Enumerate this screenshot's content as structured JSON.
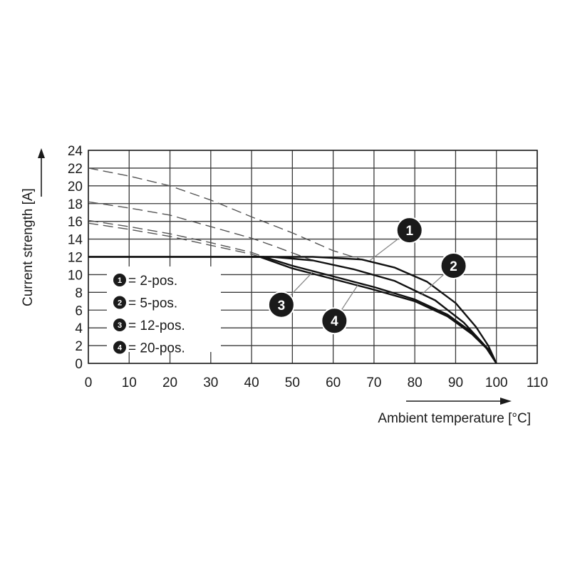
{
  "chart_data": {
    "type": "line",
    "xlabel": "Ambient temperature [°C]",
    "ylabel": "Current strength [A]",
    "xlim": [
      0,
      110
    ],
    "ylim": [
      0,
      24
    ],
    "xticks": [
      "0",
      "10",
      "20",
      "30",
      "40",
      "50",
      "60",
      "70",
      "80",
      "90",
      "100",
      "110"
    ],
    "yticks": [
      "0",
      "2",
      "4",
      "6",
      "8",
      "10",
      "12",
      "14",
      "16",
      "18",
      "20",
      "22",
      "24"
    ],
    "grid": true,
    "legend_position": "lower-left",
    "plateau": {
      "y": 12,
      "x": [
        0,
        40
      ]
    },
    "series": [
      {
        "name": "2-pos.",
        "marker_label": "1",
        "solid": [
          [
            40,
            12
          ],
          [
            55,
            12
          ],
          [
            67,
            11.7
          ],
          [
            75,
            10.8
          ],
          [
            83,
            9.2
          ],
          [
            90,
            6.8
          ],
          [
            95,
            4.1
          ],
          [
            98,
            2.0
          ],
          [
            100,
            0
          ]
        ],
        "dashed": [
          [
            0,
            22
          ],
          [
            10,
            21.1
          ],
          [
            20,
            20
          ],
          [
            30,
            18.4
          ],
          [
            40,
            16.5
          ],
          [
            50,
            14.7
          ],
          [
            60,
            12.7
          ],
          [
            67,
            11.7
          ]
        ]
      },
      {
        "name": "5-pos.",
        "marker_label": "2",
        "solid": [
          [
            40,
            12
          ],
          [
            45,
            12
          ],
          [
            55,
            11.6
          ],
          [
            65,
            10.6
          ],
          [
            75,
            9.3
          ],
          [
            85,
            7.1
          ],
          [
            92,
            4.6
          ],
          [
            97,
            2.1
          ],
          [
            100,
            0
          ]
        ],
        "dashed": [
          [
            0,
            18.2
          ],
          [
            10,
            17.5
          ],
          [
            20,
            16.7
          ],
          [
            30,
            15.4
          ],
          [
            40,
            14.1
          ],
          [
            45,
            13.3
          ],
          [
            55,
            11.6
          ]
        ]
      },
      {
        "name": "12-pos.",
        "marker_label": "3",
        "solid": [
          [
            40,
            12
          ],
          [
            43,
            12
          ],
          [
            50,
            11.0
          ],
          [
            60,
            9.8
          ],
          [
            70,
            8.6
          ],
          [
            80,
            7.2
          ],
          [
            88,
            5.5
          ],
          [
            94,
            3.5
          ],
          [
            98,
            1.6
          ],
          [
            100,
            0
          ]
        ],
        "dashed": [
          [
            0,
            16.1
          ],
          [
            10,
            15.4
          ],
          [
            20,
            14.6
          ],
          [
            30,
            13.6
          ],
          [
            40,
            12.5
          ],
          [
            43,
            12
          ]
        ]
      },
      {
        "name": "20-pos.",
        "marker_label": "4",
        "solid": [
          [
            40,
            12
          ],
          [
            42,
            12
          ],
          [
            50,
            10.7
          ],
          [
            60,
            9.5
          ],
          [
            70,
            8.3
          ],
          [
            80,
            7.0
          ],
          [
            88,
            5.3
          ],
          [
            94,
            3.3
          ],
          [
            98,
            1.5
          ],
          [
            100,
            0
          ]
        ],
        "dashed": [
          [
            0,
            15.8
          ],
          [
            10,
            15.1
          ],
          [
            20,
            14.3
          ],
          [
            30,
            13.3
          ],
          [
            40,
            12.3
          ],
          [
            42,
            12
          ]
        ]
      }
    ],
    "callouts": [
      {
        "label": "1",
        "x": 78.7,
        "y": 15.0,
        "to": [
          69,
          11.6
        ]
      },
      {
        "label": "2",
        "x": 89.5,
        "y": 11.0,
        "to": [
          81.5,
          7.7
        ]
      },
      {
        "label": "3",
        "x": 47.3,
        "y": 6.6,
        "to": [
          55,
          10.3
        ]
      },
      {
        "label": "4",
        "x": 60.3,
        "y": 4.8,
        "to": [
          66,
          8.8
        ]
      }
    ]
  }
}
